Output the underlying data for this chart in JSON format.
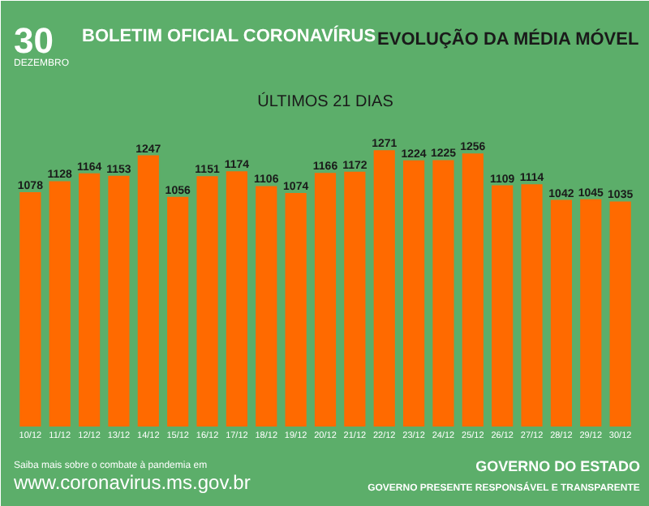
{
  "chart_data": {
    "type": "bar",
    "title": "EVOLUÇÃO DA MÉDIA MÓVEL",
    "subtitle": "ÚLTIMOS 21 DIAS",
    "annotations": [
      "30",
      "DEZEMBRO",
      "BOLETIM OFICIAL CORONAVÍRUS",
      "Saiba mais sobre o combate à pandemia em",
      "www.coronavirus.ms.gov.br",
      "GOVERNO PRESENTE RESPONSÁVEL E TRANSPARENTE",
      "GOVERNO DO ESTADO"
    ],
    "categories": [
      "10/12",
      "11/12",
      "12/12",
      "13/12",
      "14/12",
      "15/12",
      "16/12",
      "17/12",
      "18/12",
      "19/12",
      "20/12",
      "21/12",
      "22/12",
      "23/12",
      "24/12",
      "25/12",
      "26/12",
      "27/12",
      "28/12",
      "29/12",
      "30/12"
    ],
    "values": [
      1078,
      1128,
      1164,
      1153,
      1247,
      1056,
      1151,
      1174,
      1106,
      1074,
      1166,
      1172,
      1271,
      1224,
      1225,
      1256,
      1109,
      1114,
      1042,
      1045,
      1035
    ],
    "color": "#ff6a00",
    "data_labels": true,
    "tick_labels": "x"
  }
}
